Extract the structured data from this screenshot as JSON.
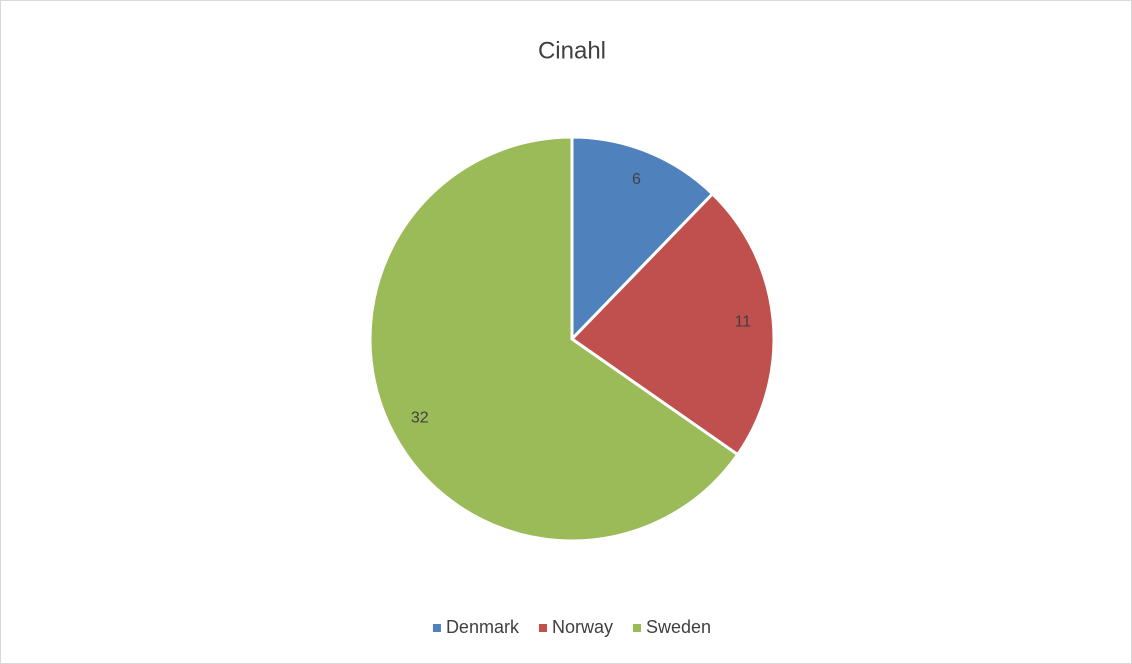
{
  "chart_data": {
    "type": "pie",
    "title": "Cinahl",
    "categories": [
      "Denmark",
      "Norway",
      "Sweden"
    ],
    "values": [
      6,
      11,
      32
    ],
    "colors": [
      "#4f81bd",
      "#c0504d",
      "#9bbb59"
    ],
    "legend": "bottom"
  }
}
